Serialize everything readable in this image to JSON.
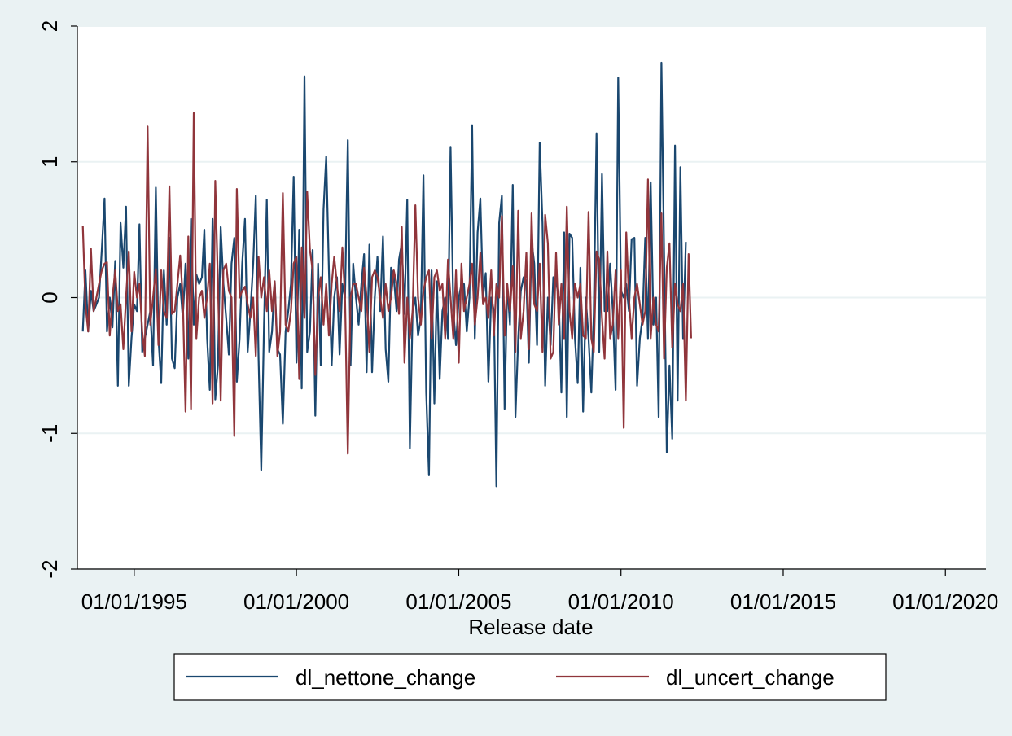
{
  "chart_data": {
    "type": "line",
    "xlabel": "Release date",
    "ylabel": "",
    "ylim": [
      -2,
      2
    ],
    "yticks": [
      -2,
      -1,
      0,
      1,
      2
    ],
    "ytick_labels": [
      "-2",
      "-1",
      "0",
      "1",
      "2"
    ],
    "xlim": [
      "1993-04-01",
      "2021-04-01"
    ],
    "xticks": [
      "1995-01-01",
      "2000-01-01",
      "2005-01-01",
      "2010-01-01",
      "2015-01-01",
      "2020-01-01"
    ],
    "xtick_labels": [
      "01/01/1995",
      "01/01/2000",
      "01/01/2005",
      "01/01/2010",
      "01/01/2015",
      "01/01/2020"
    ],
    "grid": true,
    "legend": "bottom",
    "x_start": "1993-06-01",
    "x_step": "month",
    "series": [
      {
        "name": "dl_nettone_change",
        "color": "#1a476f",
        "values": [
          -0.25,
          0.2,
          -0.25,
          0.05,
          -0.1,
          -0.05,
          0.0,
          0.35,
          0.73,
          -0.25,
          0.0,
          -0.22,
          0.27,
          -0.65,
          0.55,
          0.22,
          0.67,
          -0.65,
          -0.3,
          -0.05,
          -0.1,
          0.54,
          -0.4,
          -0.3,
          -0.2,
          -0.1,
          -0.5,
          0.81,
          -0.3,
          -0.63,
          0.2,
          -0.2,
          0.44,
          -0.45,
          -0.52,
          0.0,
          0.1,
          -0.15,
          0.25,
          -0.45,
          0.58,
          -0.2,
          0.17,
          0.1,
          0.15,
          0.5,
          -0.3,
          -0.68,
          0.58,
          -0.75,
          -0.5,
          0.52,
          0.1,
          -0.15,
          -0.42,
          0.25,
          0.44,
          -0.62,
          -0.3,
          0.25,
          0.58,
          -0.4,
          -0.1,
          0.25,
          0.75,
          -0.45,
          -1.27,
          -0.2,
          0.72,
          -0.4,
          -0.25,
          0.12,
          -0.38,
          -0.42,
          -0.93,
          -0.25,
          -0.1,
          0.1,
          0.89,
          -0.48,
          0.5,
          -0.67,
          1.63,
          -0.4,
          -0.25,
          0.35,
          -0.87,
          0.25,
          -0.5,
          0.65,
          1.04,
          0.2,
          -0.5,
          0.0,
          0.15,
          -0.42,
          0.1,
          0.0,
          1.16,
          -0.5,
          0.25,
          0.0,
          -0.2,
          0.1,
          0.32,
          -0.55,
          0.39,
          -0.55,
          0.0,
          0.3,
          -0.1,
          0.45,
          -0.38,
          -0.62,
          0.22,
          0.15,
          -0.1,
          0.28,
          0.4,
          -0.12,
          0.72,
          -1.11,
          -0.1,
          0.0,
          -0.28,
          -0.15,
          0.9,
          -0.7,
          -1.31,
          0.2,
          -0.78,
          0.12,
          -0.6,
          -0.1,
          0.0,
          -0.3,
          1.11,
          -0.1,
          -0.35,
          0.0,
          0.1,
          0.1,
          -0.25,
          0.0,
          1.27,
          -0.3,
          0.48,
          0.73,
          0.0,
          0.18,
          -0.62,
          0.0,
          -0.1,
          -1.39,
          0.55,
          0.75,
          -0.82,
          0.1,
          -0.2,
          0.83,
          -0.88,
          -0.3,
          0.05,
          0.15,
          0.12,
          -0.48,
          0.42,
          0.25,
          -0.35,
          1.14,
          0.55,
          -0.65,
          0.0,
          -0.35,
          0.15,
          0.12,
          0.0,
          -0.7,
          0.48,
          -0.88,
          0.47,
          0.44,
          -0.3,
          -0.63,
          0.22,
          -0.84,
          0.0,
          -0.3,
          -0.7,
          -0.12,
          1.21,
          -0.4,
          0.91,
          -0.1,
          -0.1,
          0.25,
          -0.1,
          -0.68,
          1.62,
          0.05,
          0.0,
          0.1,
          -0.1,
          0.43,
          0.44,
          -0.65,
          -0.3,
          -0.15,
          0.44,
          -0.3,
          0.85,
          -0.2,
          0.0,
          -0.88,
          1.73,
          0.35,
          -1.14,
          -0.5,
          -1.04,
          1.12,
          -0.76,
          0.96,
          -0.3,
          0.41
        ]
      },
      {
        "name": "dl_uncert_change",
        "color": "#90353b",
        "values": [
          0.53,
          -0.05,
          -0.25,
          0.36,
          -0.1,
          0.0,
          0.1,
          0.2,
          0.25,
          0.26,
          -0.28,
          0.0,
          0.2,
          -0.1,
          -0.05,
          -0.38,
          0.0,
          0.34,
          -0.25,
          0.19,
          0.0,
          0.1,
          -0.25,
          -0.43,
          1.26,
          -0.2,
          0.0,
          0.21,
          -0.35,
          0.2,
          -0.1,
          -0.15,
          0.82,
          -0.12,
          -0.1,
          0.1,
          0.31,
          0.0,
          -0.84,
          0.45,
          -0.82,
          1.36,
          -0.3,
          0.0,
          0.05,
          -0.15,
          0.0,
          0.25,
          -0.78,
          0.86,
          0.1,
          -0.76,
          0.2,
          0.25,
          0.05,
          0.0,
          -1.02,
          0.8,
          0.0,
          0.05,
          0.08,
          -0.05,
          -0.15,
          0.0,
          -0.43,
          0.3,
          0.0,
          0.15,
          -0.1,
          0.2,
          -0.1,
          0.12,
          -0.43,
          -0.25,
          0.77,
          -0.2,
          -0.25,
          -0.1,
          0.25,
          0.3,
          -0.6,
          0.37,
          -0.15,
          0.78,
          0.35,
          0.2,
          -0.57,
          0.0,
          0.15,
          -0.2,
          0.1,
          -0.28,
          0.1,
          0.3,
          0.1,
          -0.1,
          0.37,
          0.0,
          -1.15,
          0.0,
          0.1,
          0.1,
          0.0,
          -0.1,
          0.22,
          0.0,
          -0.4,
          0.15,
          0.2,
          0.15,
          0.0,
          -0.15,
          0.1,
          -0.1,
          0.0,
          0.2,
          0.1,
          -0.12,
          0.52,
          -0.48,
          0.0,
          -0.3,
          -0.1,
          0.68,
          0.0,
          -0.2,
          0.05,
          0.15,
          0.2,
          -0.3,
          0.15,
          0.2,
          0.05,
          0.1,
          -0.3,
          0.28,
          0.0,
          -0.3,
          0.2,
          -0.48,
          0.25,
          -0.1,
          0.0,
          0.1,
          0.25,
          -0.2,
          0.0,
          0.33,
          -0.05,
          0.0,
          -0.15,
          0.2,
          -0.28,
          0.1,
          0.0,
          0.6,
          -0.28,
          0.1,
          -0.1,
          0.23,
          -0.4,
          0.64,
          -0.3,
          -0.1,
          0.33,
          -0.38,
          0.62,
          -0.05,
          -0.1,
          0.25,
          -0.4,
          0.61,
          0.4,
          -0.45,
          -0.4,
          0.33,
          -0.2,
          0.1,
          -0.3,
          0.67,
          -0.1,
          -0.3,
          0.1,
          0.0,
          0.1,
          -0.28,
          -0.3,
          0.63,
          -0.3,
          -0.4,
          0.34,
          0.28,
          -0.15,
          -0.45,
          0.34,
          -0.3,
          -0.2,
          0.2,
          -0.3,
          0.2,
          -0.96,
          0.48,
          0.0,
          -0.3,
          0.0,
          0.1,
          -0.05,
          -0.2,
          -0.1,
          0.87,
          -0.3,
          0.0,
          -0.2,
          -0.25,
          0.62,
          -0.45,
          0.22,
          0.4,
          -0.37,
          0.1,
          -0.05,
          -0.1,
          0.1,
          -0.76,
          0.32,
          -0.3
        ]
      }
    ]
  }
}
